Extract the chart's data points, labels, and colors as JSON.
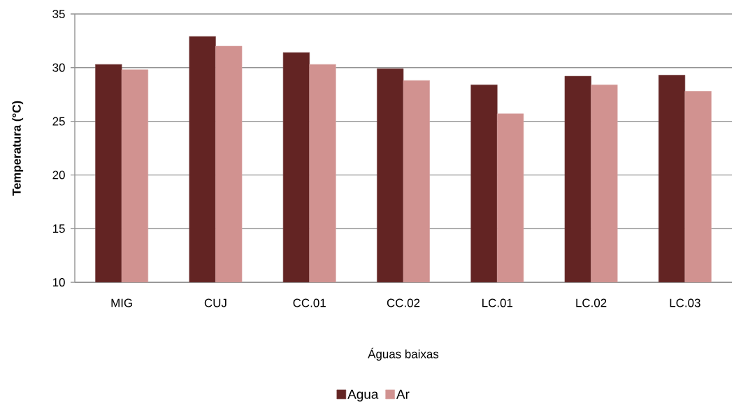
{
  "chart_data": {
    "type": "bar",
    "xlabel": "Águas baixas",
    "ylabel": "Temperatura (°C)",
    "categories": [
      "MIG",
      "CUJ",
      "CC.01",
      "CC.02",
      "LC.01",
      "LC.02",
      "LC.03"
    ],
    "series": [
      {
        "name": "Agua",
        "color": "#632423",
        "values": [
          30.3,
          32.9,
          31.4,
          29.9,
          28.4,
          29.2,
          29.3
        ]
      },
      {
        "name": "Ar",
        "color": "#d19290",
        "values": [
          29.8,
          32.0,
          30.3,
          28.8,
          25.7,
          28.4,
          27.8
        ]
      }
    ],
    "ylim": [
      10,
      35
    ],
    "yticks": [
      10,
      15,
      20,
      25,
      30,
      35
    ],
    "grid": "y",
    "legend": "bottom"
  }
}
